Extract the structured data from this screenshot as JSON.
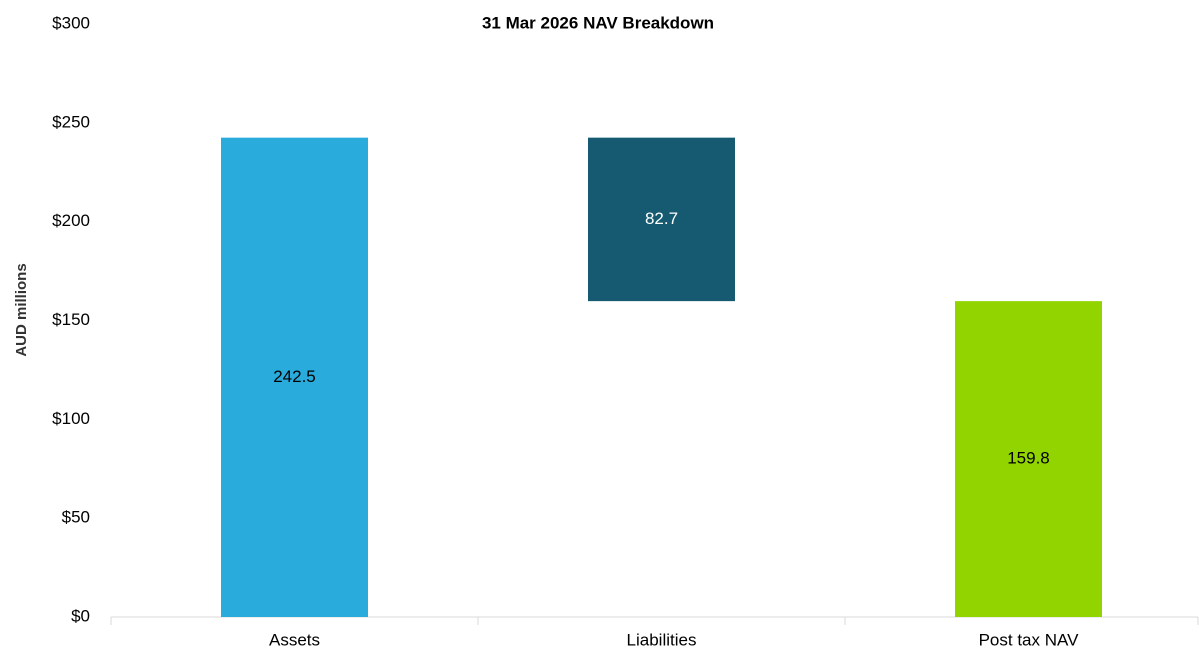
{
  "chart_data": {
    "type": "waterfall",
    "title": "31 Mar 2026 NAV Breakdown",
    "y_label": "AUD millions",
    "categories": [
      "Assets",
      "Liabilities",
      "Post tax NAV"
    ],
    "values": [
      242.5,
      82.7,
      159.8
    ],
    "measures": [
      "absolute",
      "decrease",
      "total"
    ],
    "colors": [
      "#29abdc",
      "#155a70",
      "#92d400"
    ],
    "label_colors": [
      "#000000",
      "#ffffff",
      "#000000"
    ],
    "ylim": [
      0,
      300
    ],
    "yticks": [
      {
        "value": 0,
        "label": "$0"
      },
      {
        "value": 50,
        "label": "$50"
      },
      {
        "value": 100,
        "label": "$100"
      },
      {
        "value": 150,
        "label": "$150"
      },
      {
        "value": 200,
        "label": "$200"
      },
      {
        "value": 250,
        "label": "$250"
      },
      {
        "value": 300,
        "label": "$300"
      }
    ],
    "grid": false
  }
}
